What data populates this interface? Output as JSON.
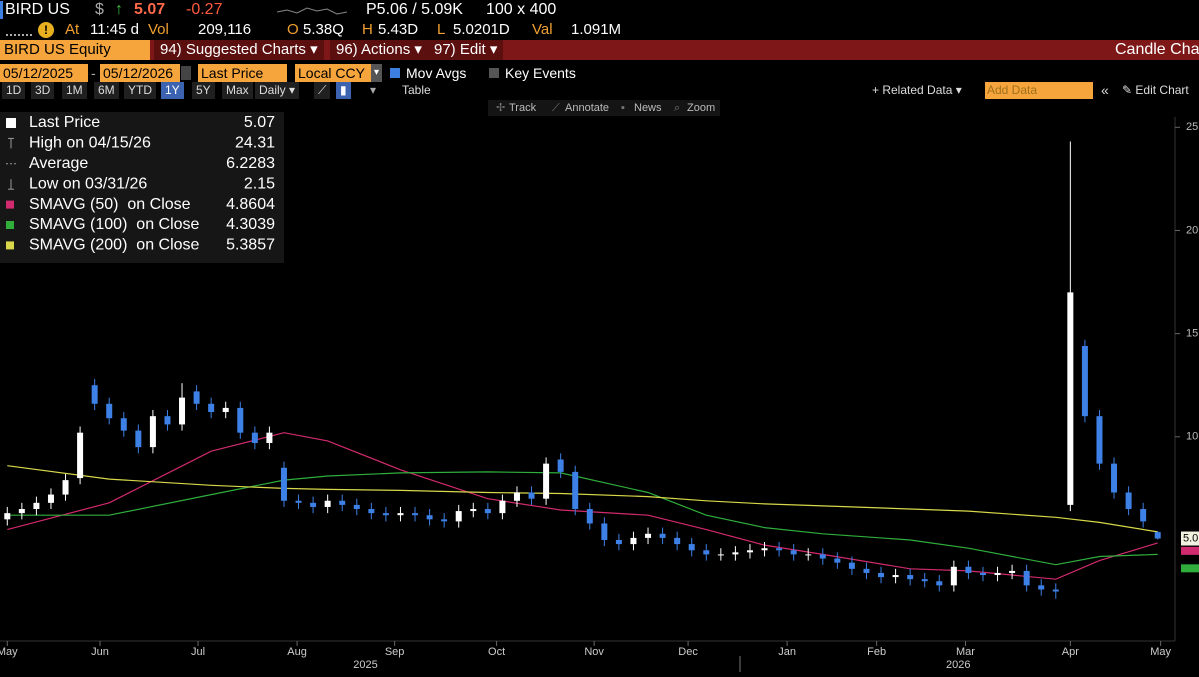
{
  "header": {
    "ticker": "BIRD US",
    "currency": "$",
    "arrow": "↑",
    "price": 5.07,
    "change": -0.27,
    "bid_ask": "P5.06 / 5.09K",
    "size": "100 x 400",
    "quote": [
      {
        "label": "At",
        "value": "11:45 d"
      },
      {
        "label": "Vol",
        "value": "209,116"
      },
      {
        "label": "O",
        "value": "5.38Q"
      },
      {
        "label": "H",
        "value": "5.43D"
      },
      {
        "label": "L",
        "value": "5.0201D"
      },
      {
        "label": "Val",
        "value": "1.091M"
      }
    ]
  },
  "menu": {
    "security": "BIRD US Equity",
    "suggested": "94) Suggested Charts",
    "actions": "96) Actions",
    "edit": "97) Edit",
    "chart_kind": "Candle Char"
  },
  "controls": {
    "start": "05/12/2025",
    "dash": "-",
    "end": "05/12/2026",
    "field": "Last Price",
    "currency": "Local CCY",
    "mov_avgs": "Mov Avgs",
    "key_events": "Key Events",
    "ranges": [
      "1D",
      "3D",
      "1M",
      "6M",
      "YTD",
      "1Y",
      "5Y",
      "Max"
    ],
    "frequency": "Daily",
    "table": "Table",
    "related": "+ Related Data",
    "add_data": "Add Data",
    "edit_chart": "Edit Chart",
    "tools": [
      "Track",
      "Annotate",
      "News",
      "Zoom"
    ]
  },
  "chart_data": {
    "type": "candlestick",
    "up_color": "#ffffff",
    "down_color": "#3d80e6",
    "open": [
      6.0,
      6.3,
      6.5,
      6.8,
      7.2,
      8.0,
      12.5,
      11.6,
      10.9,
      10.3,
      9.5,
      11.0,
      10.6,
      12.2,
      11.6,
      11.2,
      11.4,
      10.2,
      9.7,
      8.5,
      6.9,
      6.8,
      6.6,
      6.9,
      6.7,
      6.5,
      6.3,
      6.2,
      6.3,
      6.2,
      6.0,
      5.9,
      6.4,
      6.5,
      6.3,
      6.9,
      7.3,
      7.0,
      8.9,
      8.3,
      6.5,
      5.8,
      5.0,
      4.8,
      5.1,
      5.3,
      5.1,
      4.8,
      4.5,
      4.3,
      4.3,
      4.4,
      4.5,
      4.6,
      4.5,
      4.3,
      4.3,
      4.1,
      3.9,
      3.6,
      3.4,
      3.2,
      3.3,
      3.1,
      3.0,
      2.8,
      3.7,
      3.4,
      3.3,
      3.4,
      3.5,
      2.8,
      2.6,
      6.7,
      14.4,
      11.0,
      8.7,
      7.3,
      6.5,
      5.38
    ],
    "high": [
      6.6,
      6.8,
      7.1,
      7.5,
      8.2,
      10.5,
      12.8,
      11.9,
      11.2,
      10.6,
      11.3,
      11.3,
      12.6,
      12.5,
      11.9,
      11.7,
      11.7,
      10.5,
      10.5,
      8.8,
      7.2,
      7.1,
      7.2,
      7.2,
      7.0,
      6.8,
      6.6,
      6.6,
      6.6,
      6.5,
      6.3,
      6.7,
      6.8,
      6.8,
      7.2,
      7.6,
      7.6,
      9.0,
      9.2,
      8.6,
      6.8,
      6.1,
      5.3,
      5.4,
      5.6,
      5.6,
      5.4,
      5.1,
      4.8,
      4.6,
      4.7,
      4.8,
      4.9,
      4.9,
      4.8,
      4.6,
      4.6,
      4.4,
      4.2,
      3.9,
      3.7,
      3.6,
      3.6,
      3.4,
      3.3,
      4.0,
      4.0,
      3.7,
      3.7,
      3.8,
      3.8,
      3.1,
      2.9,
      24.31,
      14.7,
      11.3,
      9.0,
      7.6,
      6.8,
      5.43
    ],
    "low": [
      5.7,
      6.0,
      6.2,
      6.5,
      6.9,
      7.7,
      11.3,
      10.6,
      10.0,
      9.2,
      9.2,
      10.3,
      10.3,
      11.3,
      10.9,
      10.9,
      9.9,
      9.4,
      9.4,
      6.6,
      6.5,
      6.3,
      6.3,
      6.4,
      6.2,
      6.0,
      5.9,
      5.9,
      5.9,
      5.7,
      5.6,
      5.6,
      6.1,
      6.0,
      6.0,
      6.6,
      6.7,
      6.7,
      8.0,
      6.2,
      5.5,
      4.7,
      4.5,
      4.5,
      4.8,
      4.8,
      4.5,
      4.2,
      4.0,
      4.0,
      4.0,
      4.1,
      4.2,
      4.2,
      4.0,
      4.0,
      3.8,
      3.6,
      3.3,
      3.1,
      2.9,
      2.9,
      2.8,
      2.7,
      2.5,
      2.5,
      3.1,
      3.0,
      3.0,
      3.1,
      2.5,
      2.3,
      2.15,
      6.4,
      10.7,
      8.4,
      7.0,
      6.2,
      5.6,
      5.0201
    ],
    "close": [
      6.3,
      6.5,
      6.8,
      7.2,
      7.9,
      10.2,
      11.6,
      10.9,
      10.3,
      9.5,
      11.0,
      10.6,
      11.9,
      11.6,
      11.2,
      11.4,
      10.2,
      9.7,
      10.2,
      6.9,
      6.8,
      6.6,
      6.9,
      6.7,
      6.5,
      6.3,
      6.2,
      6.3,
      6.2,
      6.0,
      5.9,
      6.4,
      6.5,
      6.3,
      6.9,
      7.3,
      7.0,
      8.7,
      8.3,
      6.5,
      5.8,
      5.0,
      4.8,
      5.1,
      5.3,
      5.1,
      4.8,
      4.5,
      4.3,
      4.3,
      4.4,
      4.5,
      4.6,
      4.5,
      4.3,
      4.3,
      4.1,
      3.9,
      3.6,
      3.4,
      3.2,
      3.3,
      3.1,
      3.0,
      2.8,
      3.7,
      3.4,
      3.3,
      3.4,
      3.5,
      2.8,
      2.6,
      2.5,
      17.0,
      11.0,
      8.7,
      7.3,
      6.5,
      5.9,
      5.07
    ],
    "ma_index": [
      0,
      7,
      14,
      19,
      22,
      27,
      33,
      38,
      44,
      48,
      52,
      56,
      62,
      66,
      72,
      75,
      79
    ],
    "series": [
      {
        "name": "SMAVG (50)  on Close",
        "color": "#d12a6e",
        "last": 4.8604,
        "values": [
          5.5,
          6.8,
          9.3,
          10.2,
          9.8,
          8.4,
          7.0,
          6.45,
          6.2,
          5.5,
          4.75,
          4.3,
          3.6,
          3.5,
          3.1,
          4.0,
          4.86
        ]
      },
      {
        "name": "SMAVG (100)  on Close",
        "color": "#2fae3c",
        "last": 4.3039,
        "values": [
          6.2,
          6.2,
          7.2,
          7.9,
          8.1,
          8.25,
          8.3,
          8.25,
          7.3,
          6.2,
          5.6,
          5.3,
          5.0,
          4.6,
          3.8,
          4.2,
          4.3
        ]
      },
      {
        "name": "SMAVG (200)  on Close",
        "color": "#d8d84a",
        "last": 5.3857,
        "values": [
          8.6,
          7.95,
          7.65,
          7.5,
          7.45,
          7.4,
          7.3,
          7.25,
          7.1,
          6.9,
          6.75,
          6.65,
          6.5,
          6.4,
          6.1,
          5.85,
          5.39
        ]
      }
    ],
    "stats": [
      {
        "label": "Last Price",
        "value": 5.07
      },
      {
        "label": "High on 04/15/26",
        "value": 24.31
      },
      {
        "label": "Average",
        "value": 6.2283
      },
      {
        "label": "Low on 03/31/26",
        "value": 2.15
      }
    ],
    "price_tag": "5.0",
    "xlim": [
      -0.5,
      79.5
    ],
    "xticks": [
      {
        "value": 0,
        "label": "May"
      },
      {
        "value": 6.37,
        "label": "Jun"
      },
      {
        "value": 13.1,
        "label": "Jul"
      },
      {
        "value": 19.9,
        "label": "Aug"
      },
      {
        "value": 26.6,
        "label": "Sep"
      },
      {
        "value": 33.6,
        "label": "Oct"
      },
      {
        "value": 40.3,
        "label": "Nov"
      },
      {
        "value": 46.75,
        "label": "Dec"
      },
      {
        "value": 53.55,
        "label": "Jan"
      },
      {
        "value": 59.7,
        "label": "Feb"
      },
      {
        "value": 65.8,
        "label": "Mar"
      },
      {
        "value": 73,
        "label": "Apr"
      },
      {
        "value": 79.2,
        "label": "May"
      }
    ],
    "year_ticks": [
      {
        "value": 24.6,
        "label": "2025"
      },
      {
        "value": 65.3,
        "label": "2026"
      }
    ],
    "ylim": [
      0.2,
      25.5
    ],
    "yticks": [
      10,
      15,
      20,
      25
    ]
  }
}
